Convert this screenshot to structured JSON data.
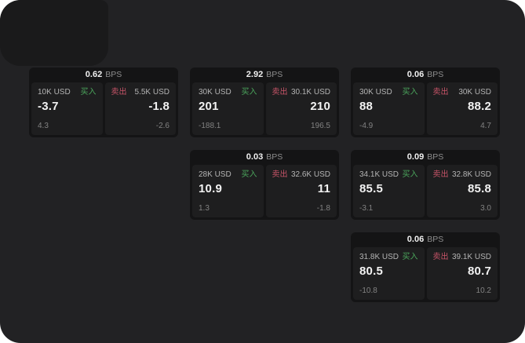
{
  "labels": {
    "bps": "BPS",
    "buy": "买入",
    "sell": "卖出"
  },
  "colors": {
    "window_bg": "#222224",
    "shade_bg": "#1a1a1b",
    "card_bg": "#141415",
    "panel_bg": "#1e1e1f",
    "buy_green": "#4ba65c",
    "sell_red": "#c75468"
  },
  "cards": [
    {
      "bps": "0.62",
      "buy": {
        "notional": "10K USD",
        "value": "-3.7",
        "sub": "4.3"
      },
      "sell": {
        "notional": "5.5K USD",
        "value": "-1.8",
        "sub": "-2.6"
      }
    },
    {
      "bps": "2.92",
      "buy": {
        "notional": "30K USD",
        "value": "201",
        "sub": "-188.1"
      },
      "sell": {
        "notional": "30.1K USD",
        "value": "210",
        "sub": "196.5"
      }
    },
    {
      "bps": "0.06",
      "buy": {
        "notional": "30K USD",
        "value": "88",
        "sub": "-4.9"
      },
      "sell": {
        "notional": "30K USD",
        "value": "88.2",
        "sub": "4.7"
      }
    },
    {
      "bps": "0.03",
      "buy": {
        "notional": "28K USD",
        "value": "10.9",
        "sub": "1.3"
      },
      "sell": {
        "notional": "32.6K USD",
        "value": "11",
        "sub": "-1.8"
      }
    },
    {
      "bps": "0.09",
      "buy": {
        "notional": "34.1K USD",
        "value": "85.5",
        "sub": "-3.1"
      },
      "sell": {
        "notional": "32.8K USD",
        "value": "85.8",
        "sub": "3.0"
      }
    },
    {
      "bps": "0.06",
      "buy": {
        "notional": "31.8K USD",
        "value": "80.5",
        "sub": "-10.8"
      },
      "sell": {
        "notional": "39.1K USD",
        "value": "80.7",
        "sub": "10.2"
      }
    }
  ]
}
